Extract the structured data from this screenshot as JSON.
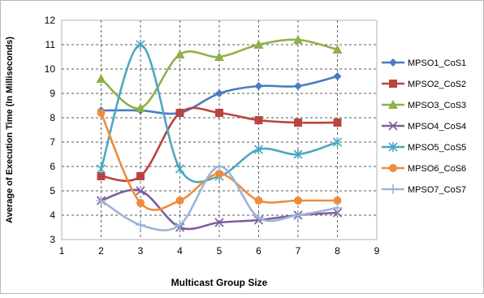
{
  "chart_data": {
    "type": "line",
    "title": "",
    "xlabel": "Multicast Group Size",
    "ylabel": "Average of Execution Time (In Milliseconds)",
    "xlim": [
      1,
      9
    ],
    "ylim": [
      3,
      12
    ],
    "x_ticks": [
      "1",
      "2",
      "3",
      "4",
      "5",
      "6",
      "7",
      "8",
      "9"
    ],
    "y_ticks": [
      "3",
      "4",
      "5",
      "6",
      "7",
      "8",
      "9",
      "10",
      "11",
      "12"
    ],
    "grid": "dashed major gridlines",
    "legend_position": "right",
    "x": [
      2,
      3,
      4,
      5,
      6,
      7,
      8
    ],
    "series": [
      {
        "name": "MPSO1_CoS1",
        "color": "#4a7bbf",
        "marker": "diamond",
        "values": [
          8.3,
          8.3,
          8.2,
          9.0,
          9.3,
          9.3,
          9.7
        ]
      },
      {
        "name": "MPSO2_CoS2",
        "color": "#b94441",
        "marker": "square",
        "values": [
          5.6,
          5.6,
          8.2,
          8.2,
          7.9,
          7.8,
          7.8
        ]
      },
      {
        "name": "MPSO3_CoS3",
        "color": "#8fb04a",
        "marker": "triangle",
        "values": [
          9.6,
          8.4,
          10.6,
          10.5,
          11.0,
          11.2,
          10.8
        ]
      },
      {
        "name": "MPSO4_CoS4",
        "color": "#7c5d9e",
        "marker": "x",
        "values": [
          4.6,
          5.0,
          3.5,
          3.7,
          3.8,
          4.0,
          4.1
        ]
      },
      {
        "name": "MPSO5_CoS5",
        "color": "#4aa8be",
        "marker": "star",
        "values": [
          5.9,
          11.0,
          5.9,
          5.6,
          6.7,
          6.5,
          7.0
        ]
      },
      {
        "name": "MPSO6_CoS6",
        "color": "#ee8c3e",
        "marker": "circle",
        "values": [
          8.2,
          4.5,
          4.6,
          5.7,
          4.6,
          4.6,
          4.6
        ]
      },
      {
        "name": "MPSO7_CoS7",
        "color": "#9db4d8",
        "marker": "plus",
        "values": [
          4.6,
          3.6,
          3.6,
          6.0,
          3.9,
          4.0,
          4.3
        ]
      }
    ]
  }
}
